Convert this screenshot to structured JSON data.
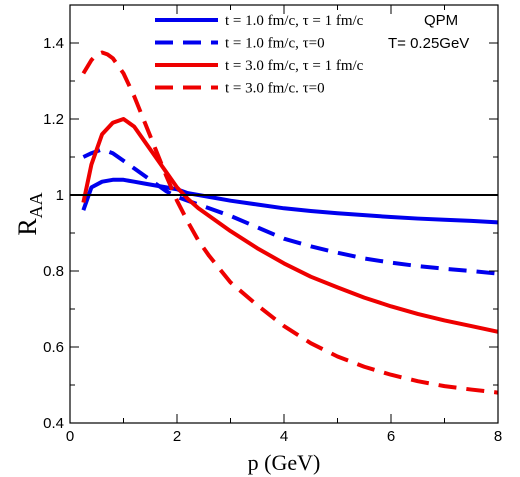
{
  "chart_data": {
    "type": "line",
    "title": "",
    "xlabel": "p (GeV)",
    "ylabel_main": "R",
    "ylabel_sub": "AA",
    "xlim": [
      0,
      8
    ],
    "ylim": [
      0.4,
      1.5
    ],
    "xticks": [
      0,
      2,
      4,
      6,
      8
    ],
    "yticks": [
      0.4,
      0.6,
      0.8,
      1.0,
      1.2,
      1.4
    ],
    "xtick_labels": [
      "0",
      "2",
      "4",
      "6",
      "8"
    ],
    "ytick_labels": [
      "0.4",
      "0.6",
      "0.8",
      "1",
      "1.2",
      "1.4"
    ],
    "grid": false,
    "legend_position": "top-right",
    "annotations": [
      "QPM",
      "T= 0.25GeV"
    ],
    "reference_line": {
      "y": 1.0,
      "color": "#000000"
    },
    "series": [
      {
        "name": "t = 1.0 fm/c, τ = 1 fm/c",
        "color": "#0000ee",
        "dash": "solid",
        "x": [
          0.25,
          0.4,
          0.6,
          0.8,
          1.0,
          1.2,
          1.4,
          1.6,
          1.8,
          2.0,
          2.2,
          2.4,
          2.6,
          3.0,
          3.5,
          4.0,
          4.5,
          5.0,
          5.5,
          6.0,
          6.5,
          7.0,
          7.5,
          8.0
        ],
        "y": [
          0.96,
          1.02,
          1.035,
          1.04,
          1.04,
          1.035,
          1.03,
          1.025,
          1.02,
          1.015,
          1.005,
          1.0,
          0.995,
          0.985,
          0.975,
          0.965,
          0.958,
          0.952,
          0.947,
          0.942,
          0.938,
          0.935,
          0.932,
          0.928
        ]
      },
      {
        "name": "t = 1.0 fm/c, τ=0",
        "color": "#0000ee",
        "dash": "dashed",
        "x": [
          0.25,
          0.4,
          0.6,
          0.8,
          1.0,
          1.2,
          1.4,
          1.6,
          1.8,
          2.0,
          2.2,
          2.4,
          2.6,
          3.0,
          3.5,
          4.0,
          4.5,
          5.0,
          5.5,
          6.0,
          6.5,
          7.0,
          7.5,
          8.0
        ],
        "y": [
          1.1,
          1.11,
          1.12,
          1.11,
          1.09,
          1.07,
          1.05,
          1.03,
          1.01,
          0.995,
          0.985,
          0.975,
          0.965,
          0.945,
          0.915,
          0.885,
          0.865,
          0.848,
          0.833,
          0.822,
          0.813,
          0.806,
          0.8,
          0.793
        ]
      },
      {
        "name": "t = 3.0 fm/c, τ = 1 fm/c",
        "color": "#ee0000",
        "dash": "solid",
        "x": [
          0.25,
          0.4,
          0.6,
          0.8,
          1.0,
          1.2,
          1.4,
          1.6,
          1.8,
          2.0,
          2.2,
          2.4,
          2.6,
          3.0,
          3.5,
          4.0,
          4.5,
          5.0,
          5.5,
          6.0,
          6.5,
          7.0,
          7.5,
          8.0
        ],
        "y": [
          0.98,
          1.08,
          1.16,
          1.19,
          1.2,
          1.18,
          1.14,
          1.1,
          1.06,
          1.02,
          0.99,
          0.965,
          0.945,
          0.905,
          0.86,
          0.82,
          0.785,
          0.757,
          0.73,
          0.707,
          0.687,
          0.67,
          0.655,
          0.64
        ]
      },
      {
        "name": "t = 3.0 fm/c. τ=0",
        "color": "#ee0000",
        "dash": "dashed",
        "x": [
          0.25,
          0.4,
          0.5,
          0.6,
          0.7,
          0.8,
          0.9,
          1.0,
          1.2,
          1.4,
          1.6,
          1.8,
          2.0,
          2.2,
          2.4,
          2.6,
          3.0,
          3.5,
          4.0,
          4.5,
          5.0,
          5.5,
          6.0,
          6.5,
          7.0,
          7.5,
          8.0
        ],
        "y": [
          1.32,
          1.355,
          1.37,
          1.375,
          1.37,
          1.36,
          1.34,
          1.32,
          1.26,
          1.19,
          1.12,
          1.05,
          0.985,
          0.93,
          0.88,
          0.84,
          0.77,
          0.71,
          0.655,
          0.61,
          0.575,
          0.548,
          0.527,
          0.51,
          0.497,
          0.488,
          0.48
        ]
      }
    ]
  }
}
